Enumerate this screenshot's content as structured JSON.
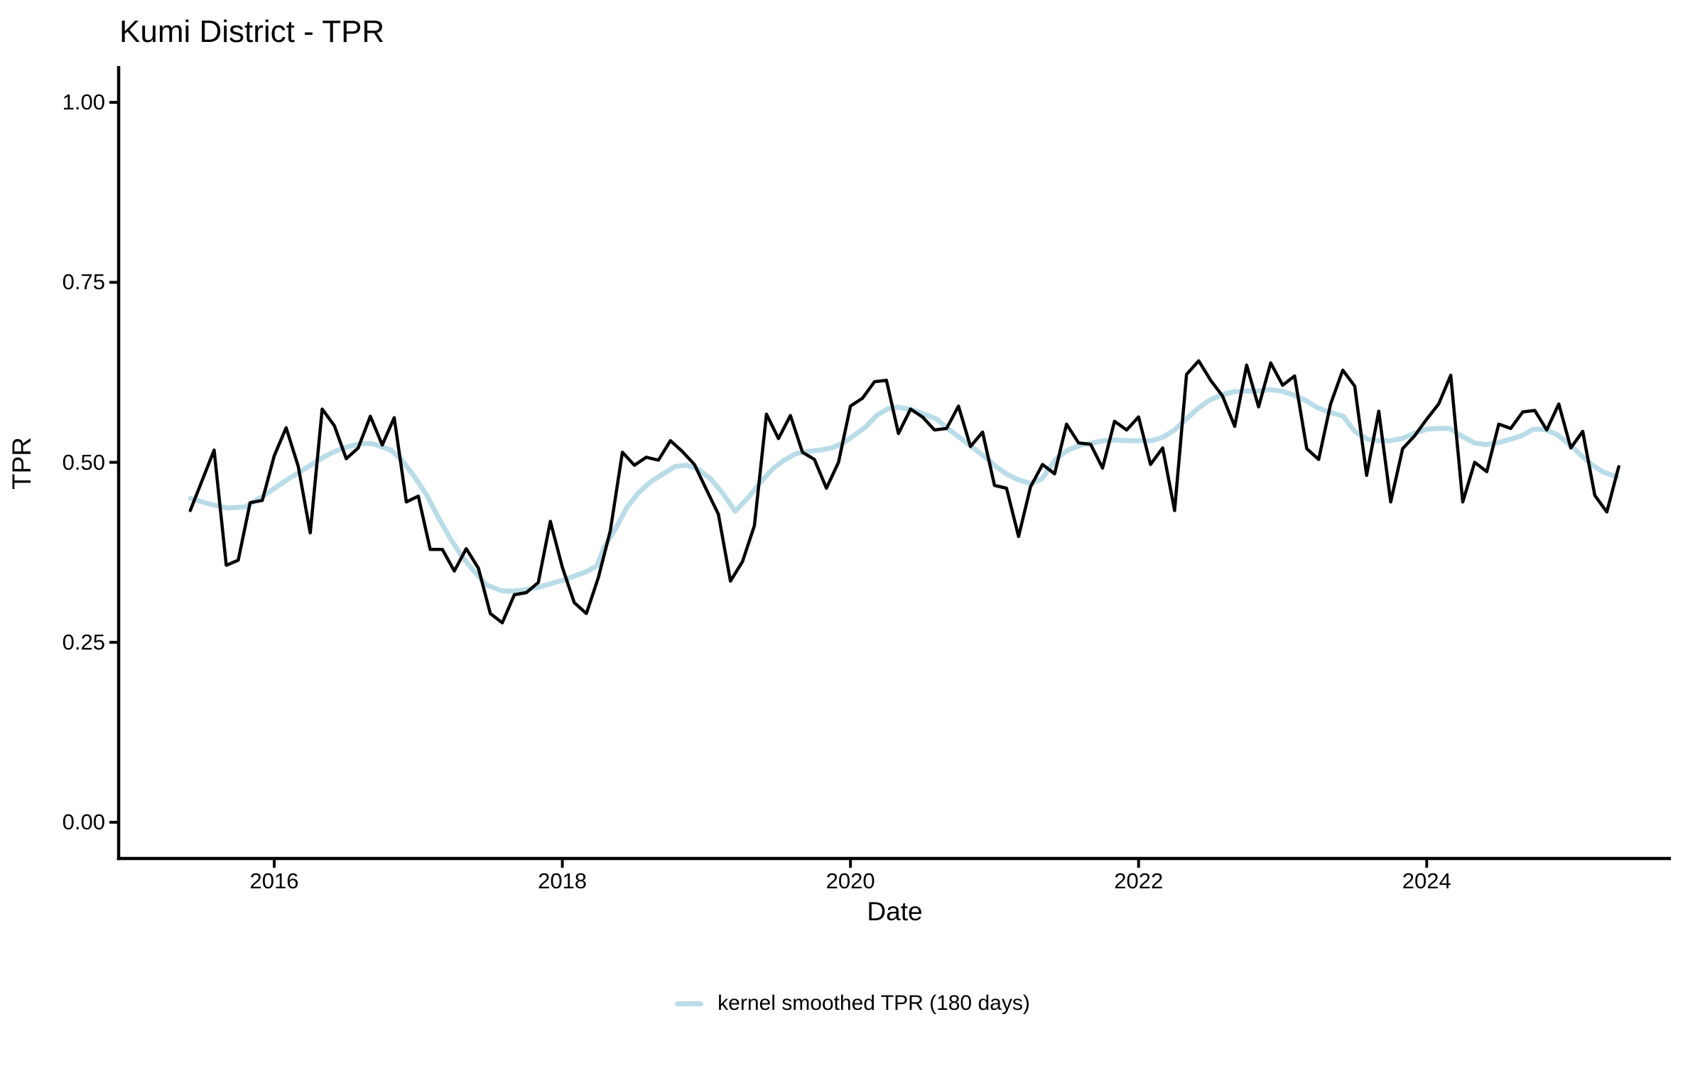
{
  "title": "Kumi District - TPR",
  "axes": {
    "x": {
      "label": "Date",
      "domain": [
        2014.92,
        2025.695
      ],
      "ticks": [
        {
          "v": 2016,
          "label": "2016"
        },
        {
          "v": 2018,
          "label": "2018"
        },
        {
          "v": 2020,
          "label": "2020"
        },
        {
          "v": 2022,
          "label": "2022"
        },
        {
          "v": 2024,
          "label": "2024"
        }
      ]
    },
    "y": {
      "label": "TPR",
      "domain": [
        -0.0503,
        1.0484
      ],
      "ticks": [
        {
          "v": 0.0,
          "label": "0.00"
        },
        {
          "v": 0.25,
          "label": "0.25"
        },
        {
          "v": 0.5,
          "label": "0.50"
        },
        {
          "v": 0.75,
          "label": "0.75"
        },
        {
          "v": 1.0,
          "label": "1.00"
        }
      ]
    }
  },
  "legend": {
    "items": [
      {
        "label": "kernel smoothed TPR (180 days)",
        "color": "#b9dce8"
      }
    ]
  },
  "styles": {
    "raw_color": "#000000",
    "smooth_color": "#b9dce8",
    "axis_color": "#000000",
    "text_color": "#000000",
    "background": "#ffffff"
  },
  "chart_data": {
    "type": "line",
    "title": "Kumi District - TPR",
    "xlabel": "Date",
    "ylabel": "TPR",
    "ylim": [
      0,
      1
    ],
    "x_range_shown": [
      2015.42,
      2025.33
    ],
    "legend_position": "bottom",
    "grid": false,
    "series": [
      {
        "name": "TPR",
        "role": "raw monthly TPR",
        "color": "#000000",
        "linewidth": 4.5,
        "points": [
          [
            2015.417,
            0.433
          ],
          [
            2015.5,
            0.475
          ],
          [
            2015.583,
            0.517
          ],
          [
            2015.667,
            0.357
          ],
          [
            2015.75,
            0.364
          ],
          [
            2015.833,
            0.444
          ],
          [
            2015.917,
            0.447
          ],
          [
            2016,
            0.509
          ],
          [
            2016.083,
            0.548
          ],
          [
            2016.167,
            0.494
          ],
          [
            2016.25,
            0.402
          ],
          [
            2016.333,
            0.574
          ],
          [
            2016.417,
            0.551
          ],
          [
            2016.5,
            0.505
          ],
          [
            2016.583,
            0.52
          ],
          [
            2016.667,
            0.564
          ],
          [
            2016.75,
            0.524
          ],
          [
            2016.833,
            0.562
          ],
          [
            2016.917,
            0.445
          ],
          [
            2017,
            0.453
          ],
          [
            2017.083,
            0.379
          ],
          [
            2017.167,
            0.379
          ],
          [
            2017.25,
            0.349
          ],
          [
            2017.333,
            0.38
          ],
          [
            2017.417,
            0.353
          ],
          [
            2017.5,
            0.29
          ],
          [
            2017.583,
            0.277
          ],
          [
            2017.667,
            0.316
          ],
          [
            2017.75,
            0.319
          ],
          [
            2017.833,
            0.333
          ],
          [
            2017.917,
            0.418
          ],
          [
            2018,
            0.354
          ],
          [
            2018.083,
            0.305
          ],
          [
            2018.167,
            0.29
          ],
          [
            2018.25,
            0.34
          ],
          [
            2018.333,
            0.405
          ],
          [
            2018.417,
            0.514
          ],
          [
            2018.5,
            0.496
          ],
          [
            2018.583,
            0.507
          ],
          [
            2018.667,
            0.503
          ],
          [
            2018.75,
            0.53
          ],
          [
            2018.833,
            0.515
          ],
          [
            2018.917,
            0.497
          ],
          [
            2019,
            0.462
          ],
          [
            2019.083,
            0.428
          ],
          [
            2019.167,
            0.335
          ],
          [
            2019.25,
            0.362
          ],
          [
            2019.333,
            0.412
          ],
          [
            2019.417,
            0.567
          ],
          [
            2019.5,
            0.533
          ],
          [
            2019.583,
            0.565
          ],
          [
            2019.667,
            0.514
          ],
          [
            2019.75,
            0.504
          ],
          [
            2019.833,
            0.464
          ],
          [
            2019.917,
            0.5
          ],
          [
            2020,
            0.578
          ],
          [
            2020.083,
            0.589
          ],
          [
            2020.167,
            0.612
          ],
          [
            2020.25,
            0.614
          ],
          [
            2020.333,
            0.54
          ],
          [
            2020.417,
            0.574
          ],
          [
            2020.5,
            0.563
          ],
          [
            2020.583,
            0.545
          ],
          [
            2020.667,
            0.547
          ],
          [
            2020.75,
            0.578
          ],
          [
            2020.833,
            0.522
          ],
          [
            2020.917,
            0.542
          ],
          [
            2021,
            0.468
          ],
          [
            2021.083,
            0.464
          ],
          [
            2021.167,
            0.397
          ],
          [
            2021.25,
            0.466
          ],
          [
            2021.333,
            0.497
          ],
          [
            2021.417,
            0.484
          ],
          [
            2021.5,
            0.553
          ],
          [
            2021.583,
            0.527
          ],
          [
            2021.667,
            0.525
          ],
          [
            2021.75,
            0.492
          ],
          [
            2021.833,
            0.557
          ],
          [
            2021.917,
            0.545
          ],
          [
            2022,
            0.563
          ],
          [
            2022.083,
            0.497
          ],
          [
            2022.167,
            0.52
          ],
          [
            2022.25,
            0.433
          ],
          [
            2022.333,
            0.622
          ],
          [
            2022.417,
            0.641
          ],
          [
            2022.5,
            0.614
          ],
          [
            2022.583,
            0.592
          ],
          [
            2022.667,
            0.55
          ],
          [
            2022.75,
            0.635
          ],
          [
            2022.833,
            0.577
          ],
          [
            2022.917,
            0.638
          ],
          [
            2023,
            0.607
          ],
          [
            2023.083,
            0.62
          ],
          [
            2023.167,
            0.519
          ],
          [
            2023.25,
            0.504
          ],
          [
            2023.333,
            0.581
          ],
          [
            2023.417,
            0.628
          ],
          [
            2023.5,
            0.606
          ],
          [
            2023.583,
            0.482
          ],
          [
            2023.667,
            0.571
          ],
          [
            2023.75,
            0.445
          ],
          [
            2023.833,
            0.519
          ],
          [
            2023.917,
            0.537
          ],
          [
            2024,
            0.56
          ],
          [
            2024.083,
            0.581
          ],
          [
            2024.167,
            0.621
          ],
          [
            2024.25,
            0.445
          ],
          [
            2024.333,
            0.5
          ],
          [
            2024.417,
            0.487
          ],
          [
            2024.5,
            0.553
          ],
          [
            2024.583,
            0.547
          ],
          [
            2024.667,
            0.57
          ],
          [
            2024.75,
            0.572
          ],
          [
            2024.833,
            0.545
          ],
          [
            2024.917,
            0.581
          ],
          [
            2025,
            0.52
          ],
          [
            2025.083,
            0.543
          ],
          [
            2025.167,
            0.454
          ],
          [
            2025.25,
            0.431
          ],
          [
            2025.333,
            0.494
          ]
        ]
      },
      {
        "name": "kernel smoothed TPR (180 days)",
        "role": "smoothed",
        "color": "#b9dce8",
        "linewidth": 7,
        "points": [
          [
            2015.42,
            0.45
          ],
          [
            2015.55,
            0.442
          ],
          [
            2015.68,
            0.4365
          ],
          [
            2015.8,
            0.438
          ],
          [
            2015.93,
            0.454
          ],
          [
            2016.01,
            0.465
          ],
          [
            2016.09,
            0.476
          ],
          [
            2016.18,
            0.487
          ],
          [
            2016.26,
            0.497
          ],
          [
            2016.34,
            0.507
          ],
          [
            2016.42,
            0.515
          ],
          [
            2016.5,
            0.521
          ],
          [
            2016.6,
            0.526
          ],
          [
            2016.68,
            0.526
          ],
          [
            2016.81,
            0.517
          ],
          [
            2016.89,
            0.502
          ],
          [
            2016.97,
            0.481
          ],
          [
            2017.06,
            0.454
          ],
          [
            2017.14,
            0.423
          ],
          [
            2017.22,
            0.395
          ],
          [
            2017.3,
            0.37
          ],
          [
            2017.39,
            0.348
          ],
          [
            2017.47,
            0.33
          ],
          [
            2017.58,
            0.3215
          ],
          [
            2017.66,
            0.321
          ],
          [
            2017.75,
            0.323
          ],
          [
            2017.83,
            0.326
          ],
          [
            2017.91,
            0.331
          ],
          [
            2018,
            0.336
          ],
          [
            2018.07,
            0.341
          ],
          [
            2018.16,
            0.3475
          ],
          [
            2018.24,
            0.356
          ],
          [
            2018.29,
            0.382
          ],
          [
            2018.37,
            0.408
          ],
          [
            2018.45,
            0.438
          ],
          [
            2018.53,
            0.458
          ],
          [
            2018.62,
            0.474
          ],
          [
            2018.7,
            0.484
          ],
          [
            2018.78,
            0.494
          ],
          [
            2018.86,
            0.496
          ],
          [
            2018.94,
            0.491
          ],
          [
            2019.03,
            0.477
          ],
          [
            2019.11,
            0.458
          ],
          [
            2019.2,
            0.432
          ],
          [
            2019.29,
            0.451
          ],
          [
            2019.37,
            0.471
          ],
          [
            2019.46,
            0.491
          ],
          [
            2019.54,
            0.503
          ],
          [
            2019.62,
            0.512
          ],
          [
            2019.7,
            0.515
          ],
          [
            2019.79,
            0.517
          ],
          [
            2019.87,
            0.52
          ],
          [
            2019.95,
            0.527
          ],
          [
            2020.03,
            0.538
          ],
          [
            2020.11,
            0.55
          ],
          [
            2020.18,
            0.565
          ],
          [
            2020.26,
            0.5745
          ],
          [
            2020.33,
            0.5765
          ],
          [
            2020.43,
            0.573
          ],
          [
            2020.51,
            0.567
          ],
          [
            2020.6,
            0.56
          ],
          [
            2020.68,
            0.546
          ],
          [
            2020.76,
            0.534
          ],
          [
            2020.84,
            0.522
          ],
          [
            2020.93,
            0.508
          ],
          [
            2021.01,
            0.494
          ],
          [
            2021.09,
            0.483
          ],
          [
            2021.17,
            0.4755
          ],
          [
            2021.25,
            0.4705
          ],
          [
            2021.33,
            0.477
          ],
          [
            2021.43,
            0.5054
          ],
          [
            2021.51,
            0.517
          ],
          [
            2021.6,
            0.524
          ],
          [
            2021.68,
            0.527
          ],
          [
            2021.76,
            0.53
          ],
          [
            2021.84,
            0.531
          ],
          [
            2021.93,
            0.53
          ],
          [
            2022.01,
            0.53
          ],
          [
            2022.09,
            0.53
          ],
          [
            2022.17,
            0.535
          ],
          [
            2022.25,
            0.545
          ],
          [
            2022.33,
            0.56
          ],
          [
            2022.41,
            0.5745
          ],
          [
            2022.49,
            0.586
          ],
          [
            2022.58,
            0.594
          ],
          [
            2022.66,
            0.598
          ],
          [
            2022.74,
            0.599
          ],
          [
            2022.83,
            0.599
          ],
          [
            2022.91,
            0.601
          ],
          [
            2022.99,
            0.599
          ],
          [
            2023.07,
            0.594
          ],
          [
            2023.16,
            0.586
          ],
          [
            2023.24,
            0.576
          ],
          [
            2023.32,
            0.57
          ],
          [
            2023.42,
            0.564
          ],
          [
            2023.5,
            0.543
          ],
          [
            2023.59,
            0.532
          ],
          [
            2023.66,
            0.53
          ],
          [
            2023.75,
            0.53
          ],
          [
            2023.83,
            0.533
          ],
          [
            2023.91,
            0.54
          ],
          [
            2024,
            0.546
          ],
          [
            2024.08,
            0.547
          ],
          [
            2024.16,
            0.547
          ],
          [
            2024.24,
            0.537
          ],
          [
            2024.33,
            0.527
          ],
          [
            2024.41,
            0.5245
          ],
          [
            2024.49,
            0.527
          ],
          [
            2024.58,
            0.532
          ],
          [
            2024.66,
            0.537
          ],
          [
            2024.74,
            0.546
          ],
          [
            2024.82,
            0.5455
          ],
          [
            2024.9,
            0.539
          ],
          [
            2024.99,
            0.525
          ],
          [
            2025.07,
            0.51
          ],
          [
            2025.15,
            0.496
          ],
          [
            2025.23,
            0.486
          ],
          [
            2025.32,
            0.48
          ]
        ]
      }
    ]
  }
}
